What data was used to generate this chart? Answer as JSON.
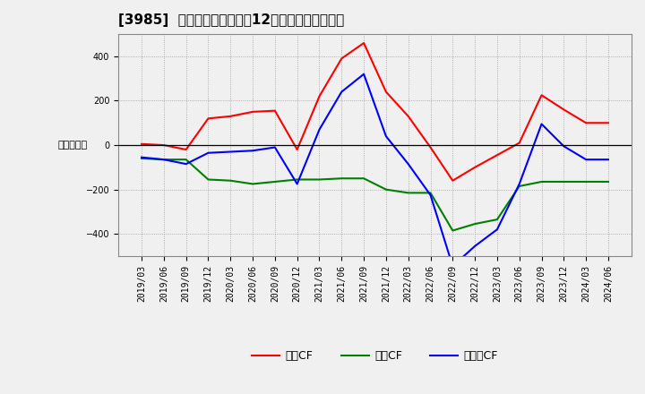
{
  "title": "[3985]  キャッシュフローの12か月移動合計の推移",
  "ylabel": "（百万円）",
  "x_labels": [
    "2019/03",
    "2019/06",
    "2019/09",
    "2019/12",
    "2020/03",
    "2020/06",
    "2020/09",
    "2020/12",
    "2021/03",
    "2021/06",
    "2021/09",
    "2021/12",
    "2022/03",
    "2022/06",
    "2022/09",
    "2022/12",
    "2023/03",
    "2023/06",
    "2023/09",
    "2023/12",
    "2024/03",
    "2024/06"
  ],
  "legend_labels": [
    "営業CF",
    "投資CF",
    "フリーCF"
  ],
  "operating_cf": [
    5,
    0,
    -20,
    120,
    130,
    150,
    155,
    -20,
    220,
    390,
    460,
    240,
    130,
    -10,
    -160,
    -100,
    -45,
    10,
    225,
    160,
    100,
    100
  ],
  "investing_cf": [
    -60,
    -65,
    -65,
    -155,
    -160,
    -175,
    -165,
    -155,
    -155,
    -150,
    -150,
    -200,
    -215,
    -215,
    -385,
    -355,
    -335,
    -185,
    -165,
    -165,
    -165,
    -165
  ],
  "free_cf": [
    -55,
    -65,
    -85,
    -35,
    -30,
    -25,
    -10,
    -175,
    70,
    240,
    320,
    40,
    -85,
    -225,
    -545,
    -455,
    -380,
    -175,
    95,
    -5,
    -65,
    -65
  ],
  "operating_color": "#ff0000",
  "investing_color": "#008000",
  "free_color": "#0000ff",
  "background_color": "#f0f0f0",
  "grid_color": "#999999",
  "ylim": [
    -500,
    500
  ],
  "yticks": [
    -400,
    -200,
    0,
    200,
    400
  ],
  "title_fontsize": 11,
  "axis_fontsize": 8,
  "tick_fontsize": 7,
  "legend_fontsize": 9
}
